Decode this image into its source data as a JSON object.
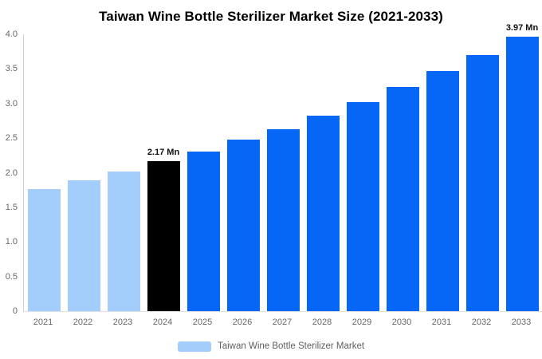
{
  "title": "Taiwan Wine Bottle Sterilizer Market Size (2021-2033)",
  "chart_data": {
    "type": "bar",
    "title": "Taiwan Wine Bottle Sterilizer Market Size (2021-2033)",
    "categories": [
      "2021",
      "2022",
      "2023",
      "2024",
      "2025",
      "2026",
      "2027",
      "2028",
      "2029",
      "2030",
      "2031",
      "2032",
      "2033"
    ],
    "values": [
      1.76,
      1.89,
      2.02,
      2.17,
      2.31,
      2.48,
      2.63,
      2.82,
      3.02,
      3.24,
      3.47,
      3.7,
      3.97
    ],
    "unit": "Mn",
    "ylim": [
      0,
      4.0
    ],
    "yticks": [
      0,
      0.5,
      1.0,
      1.5,
      2.0,
      2.5,
      3.0,
      3.5,
      4.0
    ],
    "ytick_labels": [
      "0",
      "0.5",
      "1.0",
      "1.5",
      "2.0",
      "2.5",
      "3.0",
      "3.5",
      "4.0"
    ],
    "grid": false,
    "legend_position": "bottom",
    "legend": [
      "Taiwan Wine Bottle Sterilizer Market"
    ],
    "annotations": [
      {
        "index": 3,
        "category": "2024",
        "text": "2.17 Mn"
      },
      {
        "index": 12,
        "category": "2033",
        "text": "3.97 Mn"
      }
    ],
    "colors": [
      "#A3CEFB",
      "#A3CEFB",
      "#A3CEFB",
      "#000000",
      "#0667F7",
      "#0667F7",
      "#0667F7",
      "#0667F7",
      "#0667F7",
      "#0667F7",
      "#0667F7",
      "#0667F7",
      "#0667F7"
    ],
    "color_roles": {
      "historical": "#A3CEFB",
      "base_year": "#000000",
      "forecast": "#0667F7"
    }
  },
  "legend": {
    "label": "Taiwan Wine Bottle Sterilizer Market",
    "swatch_color": "#A3CEFB"
  }
}
